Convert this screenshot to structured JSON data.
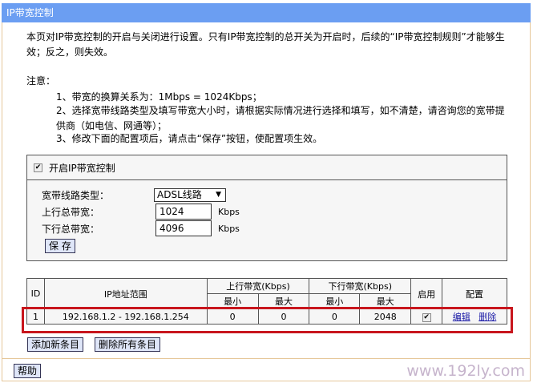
{
  "title": "IP带宽控制",
  "intro": "本页对IP带宽控制的开启与关闭进行设置。只有IP带宽控制的总开关为开启时，后续的“IP带宽控制规则”才能够生效；反之，则失效。",
  "notes_label": "注意：",
  "notes": [
    "1、带宽的换算关系为：1Mbps = 1024Kbps；",
    "2、选择宽带线路类型及填写带宽大小时，请根据实际情况进行选择和填写，如不清楚，请咨询您的宽带提供商（如电信、网通等）；",
    "3、修改下面的配置项后，请点击“保存”按钮，使配置项生效。"
  ],
  "config": {
    "enable_label": "开启IP带宽控制",
    "enabled": true,
    "line_type_label": "宽带线路类型：",
    "line_type": "ADSL线路",
    "up_label": "上行总带宽：",
    "up_value": "1024",
    "down_label": "下行总带宽：",
    "down_value": "4096",
    "unit": "Kbps",
    "save": "保 存"
  },
  "table": {
    "headers": {
      "id": "ID",
      "ip": "IP地址范围",
      "up": "上行带宽(Kbps)",
      "down": "下行带宽(Kbps)",
      "enable": "启用",
      "config": "配置",
      "min": "最小",
      "max": "最大"
    },
    "rows": [
      {
        "id": "1",
        "ip": "192.168.1.2 - 192.168.1.254",
        "up_min": "0",
        "up_max": "0",
        "down_min": "0",
        "down_max": "2048",
        "enabled": true,
        "edit": "编辑",
        "delete": "删除"
      }
    ]
  },
  "buttons": {
    "add": "添加新条目",
    "delete_all": "删除所有条目",
    "help": "帮助"
  },
  "watermark": "www.192ly.com"
}
